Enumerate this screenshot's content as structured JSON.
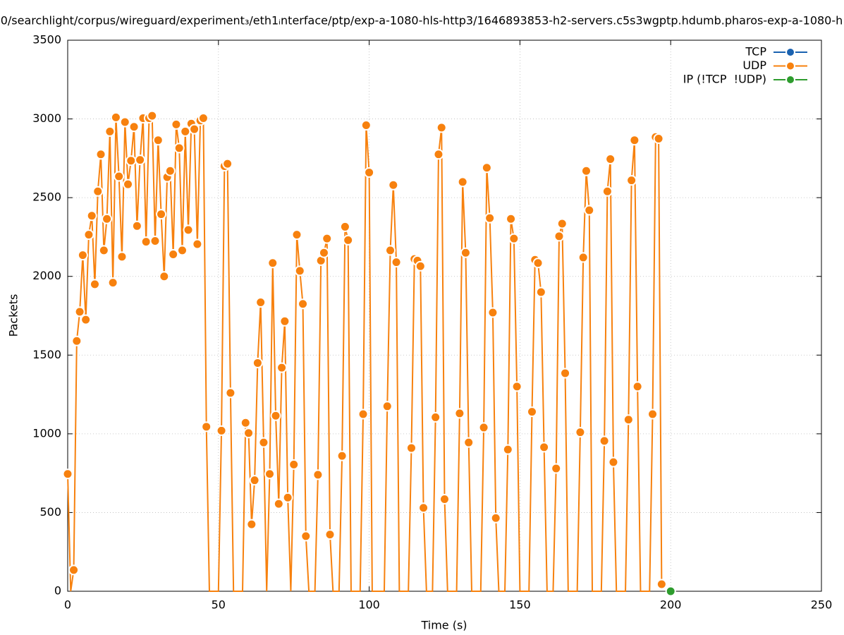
{
  "chart_data": {
    "type": "line",
    "title": "0/searchlight/corpus/wireguard/experiment₃/eth1ᵢnterface/ptp/exp-a-1080-hls-http3/1646893853-h2-servers.c5s3wgptp.hdumb.pharos-exp-a-1080-h",
    "x_label": "Time (s)",
    "y_label": "Packets",
    "xlim": [
      0,
      250
    ],
    "xticks": [
      0,
      50,
      100,
      150,
      200,
      250
    ],
    "ylim": [
      0,
      3500
    ],
    "yticks": [
      0,
      500,
      1000,
      1500,
      2000,
      2500,
      3000,
      3500
    ],
    "grid": true,
    "legend": "top-right",
    "series": [
      {
        "name": "TCP",
        "color": "#1a62b0",
        "x": [],
        "values": []
      },
      {
        "name": "UDP",
        "color": "#f7810e",
        "x": [
          0,
          1,
          2,
          3,
          4,
          5,
          6,
          7,
          8,
          9,
          10,
          11,
          12,
          13,
          14,
          15,
          16,
          17,
          18,
          19,
          20,
          21,
          22,
          23,
          24,
          25,
          26,
          27,
          28,
          29,
          30,
          31,
          32,
          33,
          34,
          35,
          36,
          37,
          38,
          39,
          40,
          41,
          42,
          43,
          44,
          45,
          46,
          47,
          48,
          49,
          50,
          51,
          52,
          53,
          54,
          55,
          56,
          57,
          58,
          59,
          60,
          61,
          62,
          63,
          64,
          65,
          66,
          67,
          68,
          69,
          70,
          71,
          72,
          73,
          74,
          75,
          76,
          77,
          78,
          79,
          80,
          81,
          82,
          83,
          84,
          85,
          86,
          87,
          88,
          89,
          90,
          91,
          92,
          93,
          94,
          95,
          96,
          97,
          98,
          99,
          100,
          101,
          102,
          103,
          104,
          105,
          106,
          107,
          108,
          109,
          110,
          111,
          112,
          113,
          114,
          115,
          116,
          117,
          118,
          119,
          120,
          121,
          122,
          123,
          124,
          125,
          126,
          127,
          128,
          129,
          130,
          131,
          132,
          133,
          134,
          135,
          136,
          137,
          138,
          139,
          140,
          141,
          142,
          143,
          144,
          145,
          146,
          147,
          148,
          149,
          150,
          151,
          152,
          153,
          154,
          155,
          156,
          157,
          158,
          159,
          160,
          161,
          162,
          163,
          164,
          165,
          166,
          167,
          168,
          169,
          170,
          171,
          172,
          173,
          174,
          175,
          176,
          177,
          178,
          179,
          180,
          181,
          182,
          183,
          184,
          185,
          186,
          187,
          188,
          189,
          190,
          191,
          192,
          193,
          194,
          195,
          196,
          197
        ],
        "values": [
          745,
          0,
          135,
          1590,
          1775,
          2135,
          1725,
          2265,
          2385,
          1950,
          2540,
          2775,
          2165,
          2365,
          2920,
          1960,
          3010,
          2635,
          2125,
          2980,
          2585,
          2735,
          2950,
          2320,
          2740,
          3005,
          2220,
          3005,
          3020,
          2225,
          2865,
          2395,
          2000,
          2630,
          2670,
          2140,
          2965,
          2815,
          2165,
          2920,
          2295,
          2970,
          2935,
          2205,
          2990,
          3005,
          1045,
          0,
          0,
          0,
          0,
          1020,
          2700,
          2715,
          1260,
          0,
          0,
          0,
          0,
          1070,
          1005,
          425,
          705,
          1450,
          1835,
          945,
          0,
          745,
          2085,
          1115,
          555,
          1420,
          1715,
          595,
          0,
          805,
          2265,
          2035,
          1825,
          350,
          0,
          0,
          0,
          740,
          2100,
          2150,
          2240,
          360,
          0,
          0,
          0,
          860,
          2315,
          2230,
          0,
          0,
          0,
          0,
          1125,
          2960,
          2660,
          0,
          0,
          0,
          0,
          0,
          1175,
          2165,
          2580,
          2090,
          0,
          0,
          0,
          0,
          910,
          2110,
          2100,
          2065,
          530,
          0,
          0,
          0,
          1105,
          2775,
          2945,
          585,
          0,
          0,
          0,
          0,
          1130,
          2600,
          2150,
          945,
          0,
          0,
          0,
          0,
          1040,
          2690,
          2370,
          1770,
          465,
          0,
          0,
          0,
          900,
          2365,
          2240,
          1300,
          0,
          0,
          0,
          0,
          1140,
          2105,
          2085,
          1900,
          915,
          0,
          0,
          0,
          780,
          2255,
          2335,
          1385,
          0,
          0,
          0,
          0,
          1010,
          2120,
          2670,
          2420,
          0,
          0,
          0,
          0,
          955,
          2540,
          2745,
          820,
          0,
          0,
          0,
          0,
          1090,
          2610,
          2865,
          1300,
          0,
          0,
          0,
          0,
          1125,
          2885,
          2875,
          45
        ]
      },
      {
        "name": "IP (!TCP  !UDP)",
        "color": "#2e9c2e",
        "x": [
          200
        ],
        "values": [
          0
        ]
      }
    ]
  }
}
